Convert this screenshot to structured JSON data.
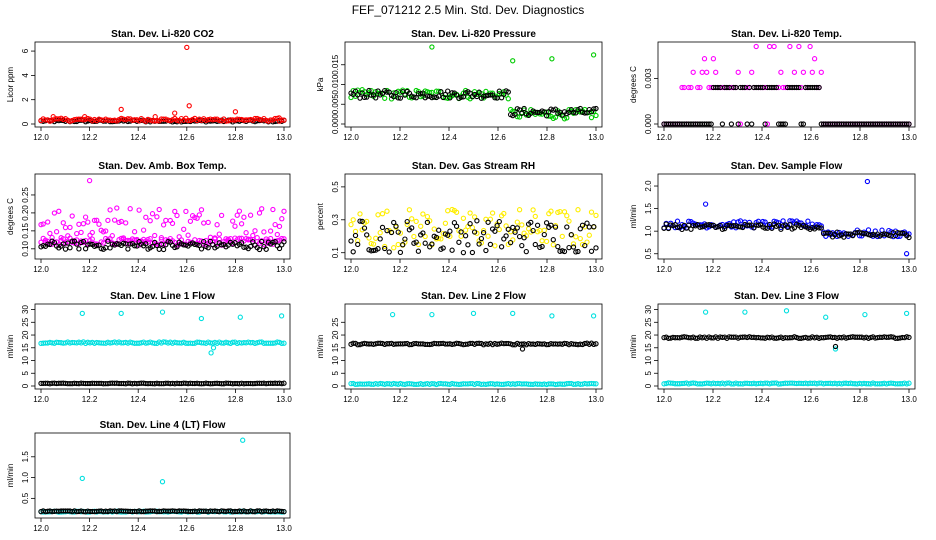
{
  "title": "FEF_071212  2.5 Min. Std. Dev. Diagnostics",
  "chart_data": [
    {
      "type": "scatter",
      "title": "Stan. Dev. Li-820 CO2",
      "ylabel": "Licor ppm",
      "xlim": [
        12.0,
        13.0
      ],
      "ylim": [
        0,
        6.5
      ],
      "yticks": [
        "0",
        "2",
        "4",
        "6"
      ],
      "xticks": [
        "12.0",
        "12.2",
        "12.4",
        "12.6",
        "12.8",
        "13.0"
      ],
      "series": [
        {
          "name": "black",
          "color": "#000000",
          "base": 0.25,
          "noise": 0.08,
          "outliers": []
        },
        {
          "name": "red",
          "color": "#ff0000",
          "base": 0.35,
          "noise": 0.12,
          "outliers": [
            [
              12.05,
              0.6
            ],
            [
              12.18,
              0.6
            ],
            [
              12.33,
              1.2
            ],
            [
              12.47,
              0.6
            ],
            [
              12.55,
              0.9
            ],
            [
              12.6,
              6.3
            ],
            [
              12.61,
              1.5
            ],
            [
              12.8,
              1.0
            ],
            [
              12.98,
              0.5
            ]
          ]
        }
      ]
    },
    {
      "type": "scatter",
      "title": "Stan. Dev. Li-820 Pressure",
      "ylabel": "kPa",
      "xlim": [
        12.0,
        13.0
      ],
      "ylim": [
        0,
        0.02
      ],
      "yticks": [
        "0.000",
        "0.005",
        "0.010",
        "0.015"
      ],
      "xticks": [
        "12.0",
        "12.2",
        "12.4",
        "12.6",
        "12.8",
        "13.0"
      ],
      "series": [
        {
          "name": "green",
          "color": "#00cc00",
          "base": 0.0075,
          "noise": 0.0012,
          "step": [
            12.65,
            0.0025
          ],
          "outliers": [
            [
              12.33,
              0.0195
            ],
            [
              12.66,
              0.016
            ],
            [
              12.82,
              0.0165
            ],
            [
              12.99,
              0.0175
            ]
          ]
        },
        {
          "name": "black",
          "color": "#000000",
          "base": 0.0075,
          "noise": 0.001,
          "step": [
            12.65,
            0.003
          ],
          "outliers": []
        }
      ]
    },
    {
      "type": "scatter",
      "title": "Stan. Dev. Li-820 Temp.",
      "ylabel": "degrees C",
      "xlim": [
        12.0,
        13.0
      ],
      "ylim": [
        0,
        0.0052
      ],
      "yticks": [
        "0.000",
        "0.003"
      ],
      "xticks": [
        "12.0",
        "12.2",
        "12.4",
        "12.6",
        "12.8",
        "13.0"
      ],
      "series": [
        {
          "name": "magenta",
          "color": "#ff00ff",
          "levels": [
            0,
            0.0024,
            0.0034,
            0.0043,
            0.0051
          ],
          "xrange": [
            12.07,
            12.65
          ]
        },
        {
          "name": "black",
          "color": "#000000",
          "levels": [
            0,
            0.0024
          ],
          "xrange": [
            12.2,
            12.65
          ]
        }
      ]
    },
    {
      "type": "scatter",
      "title": "Stan. Dev. Amb. Box Temp.",
      "ylabel": "degrees C",
      "xlim": [
        12.0,
        13.0
      ],
      "ylim": [
        0.08,
        0.3
      ],
      "yticks": [
        "0.10",
        "0.15",
        "0.20",
        "0.25"
      ],
      "xticks": [
        "12.0",
        "12.2",
        "12.4",
        "12.6",
        "12.8",
        "13.0"
      ],
      "series": [
        {
          "name": "magenta",
          "color": "#ff00ff",
          "base": 0.17,
          "noise": 0.05,
          "outliers": [
            [
              12.2,
              0.29
            ]
          ]
        },
        {
          "name": "magenta2",
          "color": "#ff00ff",
          "base": 0.12,
          "noise": 0.01,
          "outliers": []
        },
        {
          "name": "black",
          "color": "#000000",
          "base": 0.11,
          "noise": 0.012,
          "outliers": []
        }
      ]
    },
    {
      "type": "scatter",
      "title": "Stan. Dev. Gas Stream RH",
      "ylabel": "percent",
      "xlim": [
        12.0,
        13.0
      ],
      "ylim": [
        0.08,
        0.56
      ],
      "yticks": [
        "0.1",
        "0.3",
        "0.5"
      ],
      "xticks": [
        "12.0",
        "12.2",
        "12.4",
        "12.6",
        "12.8",
        "13.0"
      ],
      "series": [
        {
          "name": "yellow",
          "color": "#ffee00",
          "base": 0.25,
          "noise": 0.12,
          "outliers": []
        },
        {
          "name": "black",
          "color": "#000000",
          "base": 0.2,
          "noise": 0.1,
          "outliers": []
        }
      ]
    },
    {
      "type": "scatter",
      "title": "Stan. Dev. Sample Flow",
      "ylabel": "ml/min",
      "xlim": [
        12.0,
        13.0
      ],
      "ylim": [
        0.45,
        2.2
      ],
      "yticks": [
        "0.5",
        "1.0",
        "1.5",
        "2.0"
      ],
      "xticks": [
        "12.0",
        "12.2",
        "12.4",
        "12.6",
        "12.8",
        "13.0"
      ],
      "series": [
        {
          "name": "blue",
          "color": "#0000ff",
          "base": 1.15,
          "noise": 0.08,
          "step": [
            12.65,
            0.95
          ],
          "outliers": [
            [
              12.17,
              1.6
            ],
            [
              12.83,
              2.1
            ],
            [
              12.99,
              0.5
            ]
          ]
        },
        {
          "name": "black",
          "color": "#000000",
          "base": 1.1,
          "noise": 0.06,
          "step": [
            12.65,
            0.92
          ],
          "outliers": []
        }
      ]
    },
    {
      "type": "scatter",
      "title": "Stan. Dev. Line 1 Flow",
      "ylabel": "ml/min",
      "xlim": [
        12.0,
        13.0
      ],
      "ylim": [
        0,
        31
      ],
      "yticks": [
        "0",
        "5",
        "10",
        "15",
        "20",
        "25",
        "30"
      ],
      "xticks": [
        "12.0",
        "12.2",
        "12.4",
        "12.6",
        "12.8",
        "13.0"
      ],
      "series": [
        {
          "name": "cyan",
          "color": "#00e0e0",
          "base": 17,
          "noise": 0.3,
          "outliers": [
            [
              12.17,
              28.5
            ],
            [
              12.33,
              28.5
            ],
            [
              12.5,
              29
            ],
            [
              12.66,
              26.5
            ],
            [
              12.82,
              27
            ],
            [
              12.99,
              27.5
            ],
            [
              12.7,
              13
            ],
            [
              12.71,
              15
            ]
          ]
        },
        {
          "name": "black",
          "color": "#000000",
          "base": 1,
          "noise": 0.1,
          "outliers": []
        }
      ]
    },
    {
      "type": "scatter",
      "title": "Stan. Dev. Line 2 Flow",
      "ylabel": "ml/min",
      "xlim": [
        12.0,
        13.0
      ],
      "ylim": [
        0,
        31
      ],
      "yticks": [
        "0",
        "5",
        "10",
        "15",
        "20",
        "25"
      ],
      "xticks": [
        "12.0",
        "12.2",
        "12.4",
        "12.6",
        "12.8",
        "13.0"
      ],
      "series": [
        {
          "name": "cyan",
          "color": "#00e0e0",
          "base": 0.8,
          "noise": 0.2,
          "outliers": [
            [
              12.17,
              28
            ],
            [
              12.33,
              28
            ],
            [
              12.5,
              28.5
            ],
            [
              12.66,
              28.5
            ],
            [
              12.82,
              27.5
            ],
            [
              12.99,
              27.5
            ]
          ]
        },
        {
          "name": "black",
          "color": "#000000",
          "base": 16.5,
          "noise": 0.3,
          "outliers": [
            [
              12.7,
              14.5
            ]
          ]
        }
      ]
    },
    {
      "type": "scatter",
      "title": "Stan. Dev. Line 3 Flow",
      "ylabel": "ml/min",
      "xlim": [
        12.0,
        13.0
      ],
      "ylim": [
        0,
        31
      ],
      "yticks": [
        "0",
        "5",
        "10",
        "15",
        "20",
        "25",
        "30"
      ],
      "xticks": [
        "12.0",
        "12.2",
        "12.4",
        "12.6",
        "12.8",
        "13.0"
      ],
      "series": [
        {
          "name": "cyan",
          "color": "#00e0e0",
          "base": 1,
          "noise": 0.2,
          "outliers": [
            [
              12.17,
              29
            ],
            [
              12.33,
              29
            ],
            [
              12.5,
              29.5
            ],
            [
              12.66,
              27
            ],
            [
              12.82,
              28
            ],
            [
              12.99,
              28.5
            ],
            [
              12.7,
              14.5
            ]
          ]
        },
        {
          "name": "black",
          "color": "#000000",
          "base": 19,
          "noise": 0.3,
          "outliers": [
            [
              12.7,
              15.5
            ]
          ]
        }
      ]
    },
    {
      "type": "scatter",
      "title": "Stan. Dev. Line 4 (LT) Flow",
      "ylabel": "ml/min",
      "xlim": [
        12.0,
        13.0
      ],
      "ylim": [
        0.1,
        2.0
      ],
      "yticks": [
        "0.5",
        "1.0",
        "1.5"
      ],
      "xticks": [
        "12.0",
        "12.2",
        "12.4",
        "12.6",
        "12.8",
        "13.0"
      ],
      "series": [
        {
          "name": "cyan",
          "color": "#00e0e0",
          "base": 0.18,
          "noise": 0.01,
          "outliers": [
            [
              12.17,
              0.98
            ],
            [
              12.5,
              0.9
            ],
            [
              12.83,
              1.9
            ]
          ]
        },
        {
          "name": "black",
          "color": "#000000",
          "base": 0.19,
          "noise": 0.01,
          "outliers": []
        }
      ]
    }
  ]
}
